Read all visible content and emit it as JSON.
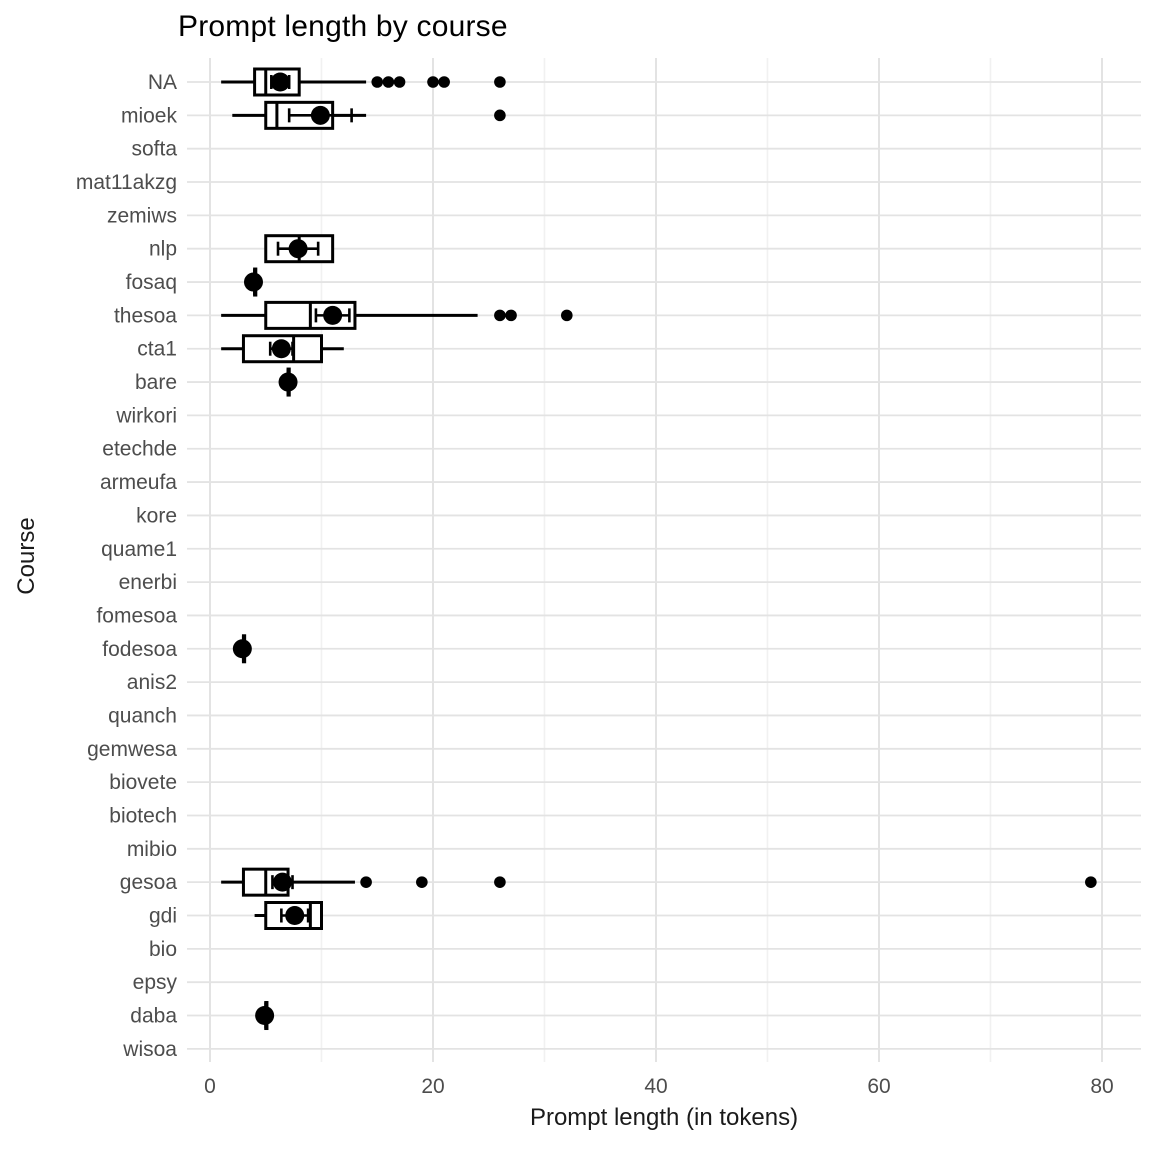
{
  "title": "Prompt length by course",
  "colors": {
    "background": "#ffffff",
    "box_stroke": "#000000",
    "point_fill": "#000000",
    "tick_label_text": "#4d4d4d",
    "axis_title_text": "#1a1a1a",
    "title_text": "#000000",
    "grid_major": "#e3e3e3",
    "grid_minor": "#f1f1f1"
  },
  "chart_data": {
    "type": "boxplot-horizontal",
    "title": "Prompt length by course",
    "xlabel": "Prompt length (in tokens)",
    "ylabel": "Course",
    "xlim": [
      -2,
      83.5
    ],
    "x_major_ticks": [
      0,
      20,
      40,
      60,
      80
    ],
    "x_minor_ticks": [
      10,
      30,
      50,
      70
    ],
    "grid": true,
    "legend": "none",
    "categories": [
      "NA",
      "mioek",
      "softa",
      "mat11akzg",
      "zemiws",
      "nlp",
      "fosaq",
      "thesoa",
      "cta1",
      "bare",
      "wirkori",
      "etechde",
      "armeufa",
      "kore",
      "quame1",
      "enerbi",
      "fomesoa",
      "fodesoa",
      "anis2",
      "quanch",
      "gemwesa",
      "biovete",
      "biotech",
      "mibio",
      "gesoa",
      "gdi",
      "bio",
      "epsy",
      "daba",
      "wisoa"
    ],
    "rows": [
      {
        "course": "NA",
        "min": 1,
        "q1": 4,
        "median": 5,
        "q3": 8,
        "max": 14,
        "mean": 6.3,
        "se": 0.8,
        "outliers": [
          15,
          16,
          17,
          20,
          21,
          26
        ]
      },
      {
        "course": "mioek",
        "min": 2,
        "q1": 5,
        "median": 6,
        "q3": 11,
        "max": 14,
        "mean": 9.9,
        "se": 2.8,
        "outliers": [
          26
        ]
      },
      {
        "course": "softa",
        "empty": true
      },
      {
        "course": "mat11akzg",
        "empty": true
      },
      {
        "course": "zemiws",
        "empty": true
      },
      {
        "course": "nlp",
        "min": 5,
        "q1": 5,
        "median": 8,
        "q3": 11,
        "max": 11,
        "mean": 7.9,
        "se": 1.8,
        "outliers": []
      },
      {
        "course": "fosaq",
        "min": 4,
        "q1": 4,
        "median": 4,
        "q3": 4,
        "max": 4,
        "mean": 3.9,
        "se": 0.25,
        "outliers": []
      },
      {
        "course": "thesoa",
        "min": 1,
        "q1": 5,
        "median": 9,
        "q3": 13,
        "max": 24,
        "mean": 11,
        "se": 1.5,
        "outliers": [
          26,
          27,
          32
        ]
      },
      {
        "course": "cta1",
        "min": 1,
        "q1": 3,
        "median": 7.5,
        "q3": 10,
        "max": 12,
        "mean": 6.4,
        "se": 1.0,
        "outliers": []
      },
      {
        "course": "bare",
        "min": 7,
        "q1": 7,
        "median": 7,
        "q3": 7,
        "max": 7,
        "mean": 7,
        "se": 0.3,
        "outliers": []
      },
      {
        "course": "wirkori",
        "empty": true
      },
      {
        "course": "etechde",
        "empty": true
      },
      {
        "course": "armeufa",
        "empty": true
      },
      {
        "course": "kore",
        "empty": true
      },
      {
        "course": "quame1",
        "empty": true
      },
      {
        "course": "enerbi",
        "empty": true
      },
      {
        "course": "fomesoa",
        "empty": true
      },
      {
        "course": "fodesoa",
        "min": 3,
        "q1": 3,
        "median": 3,
        "q3": 3,
        "max": 3,
        "mean": 2.9,
        "se": 0.25,
        "outliers": []
      },
      {
        "course": "anis2",
        "empty": true
      },
      {
        "course": "quanch",
        "empty": true
      },
      {
        "course": "gemwesa",
        "empty": true
      },
      {
        "course": "biovete",
        "empty": true
      },
      {
        "course": "biotech",
        "empty": true
      },
      {
        "course": "mibio",
        "empty": true
      },
      {
        "course": "gesoa",
        "min": 1,
        "q1": 3,
        "median": 5,
        "q3": 7,
        "max": 13,
        "mean": 6.5,
        "se": 0.9,
        "outliers": [
          14,
          19,
          26,
          79
        ]
      },
      {
        "course": "gdi",
        "min": 4,
        "q1": 5,
        "median": 9,
        "q3": 10,
        "max": 10,
        "mean": 7.6,
        "se": 1.2,
        "outliers": []
      },
      {
        "course": "bio",
        "empty": true
      },
      {
        "course": "epsy",
        "empty": true
      },
      {
        "course": "daba",
        "min": 5,
        "q1": 5,
        "median": 5,
        "q3": 5,
        "max": 5,
        "mean": 4.9,
        "se": 0.35,
        "outliers": []
      },
      {
        "course": "wisoa",
        "empty": true
      }
    ]
  }
}
